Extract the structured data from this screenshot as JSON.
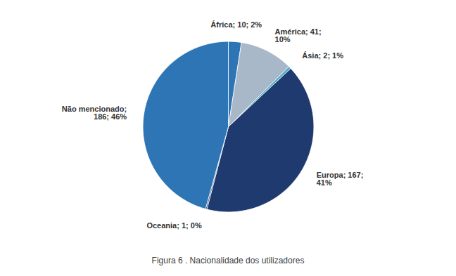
{
  "chart_data": {
    "type": "pie",
    "title": "Figura 6 .  Nacionalidade dos utilizadores",
    "categories": [
      "África",
      "América",
      "Ásia",
      "Europa",
      "Oceania",
      "Não mencionado"
    ],
    "values": [
      10,
      41,
      2,
      167,
      1,
      186
    ],
    "colors": [
      "#2e75b6",
      "#a9b8c8",
      "#4bacc6",
      "#1f3a6e",
      "#1a3a6e",
      "#2e75b6"
    ],
    "data_labels": true,
    "value_labels": [
      "África; 10; 2%",
      "América; 41;\n10%",
      "Ásia; 2; 1%",
      "Europa; 167;\n41%",
      "Oceania; 1; 0%",
      "Não mencionado;\n186; 46%"
    ]
  }
}
